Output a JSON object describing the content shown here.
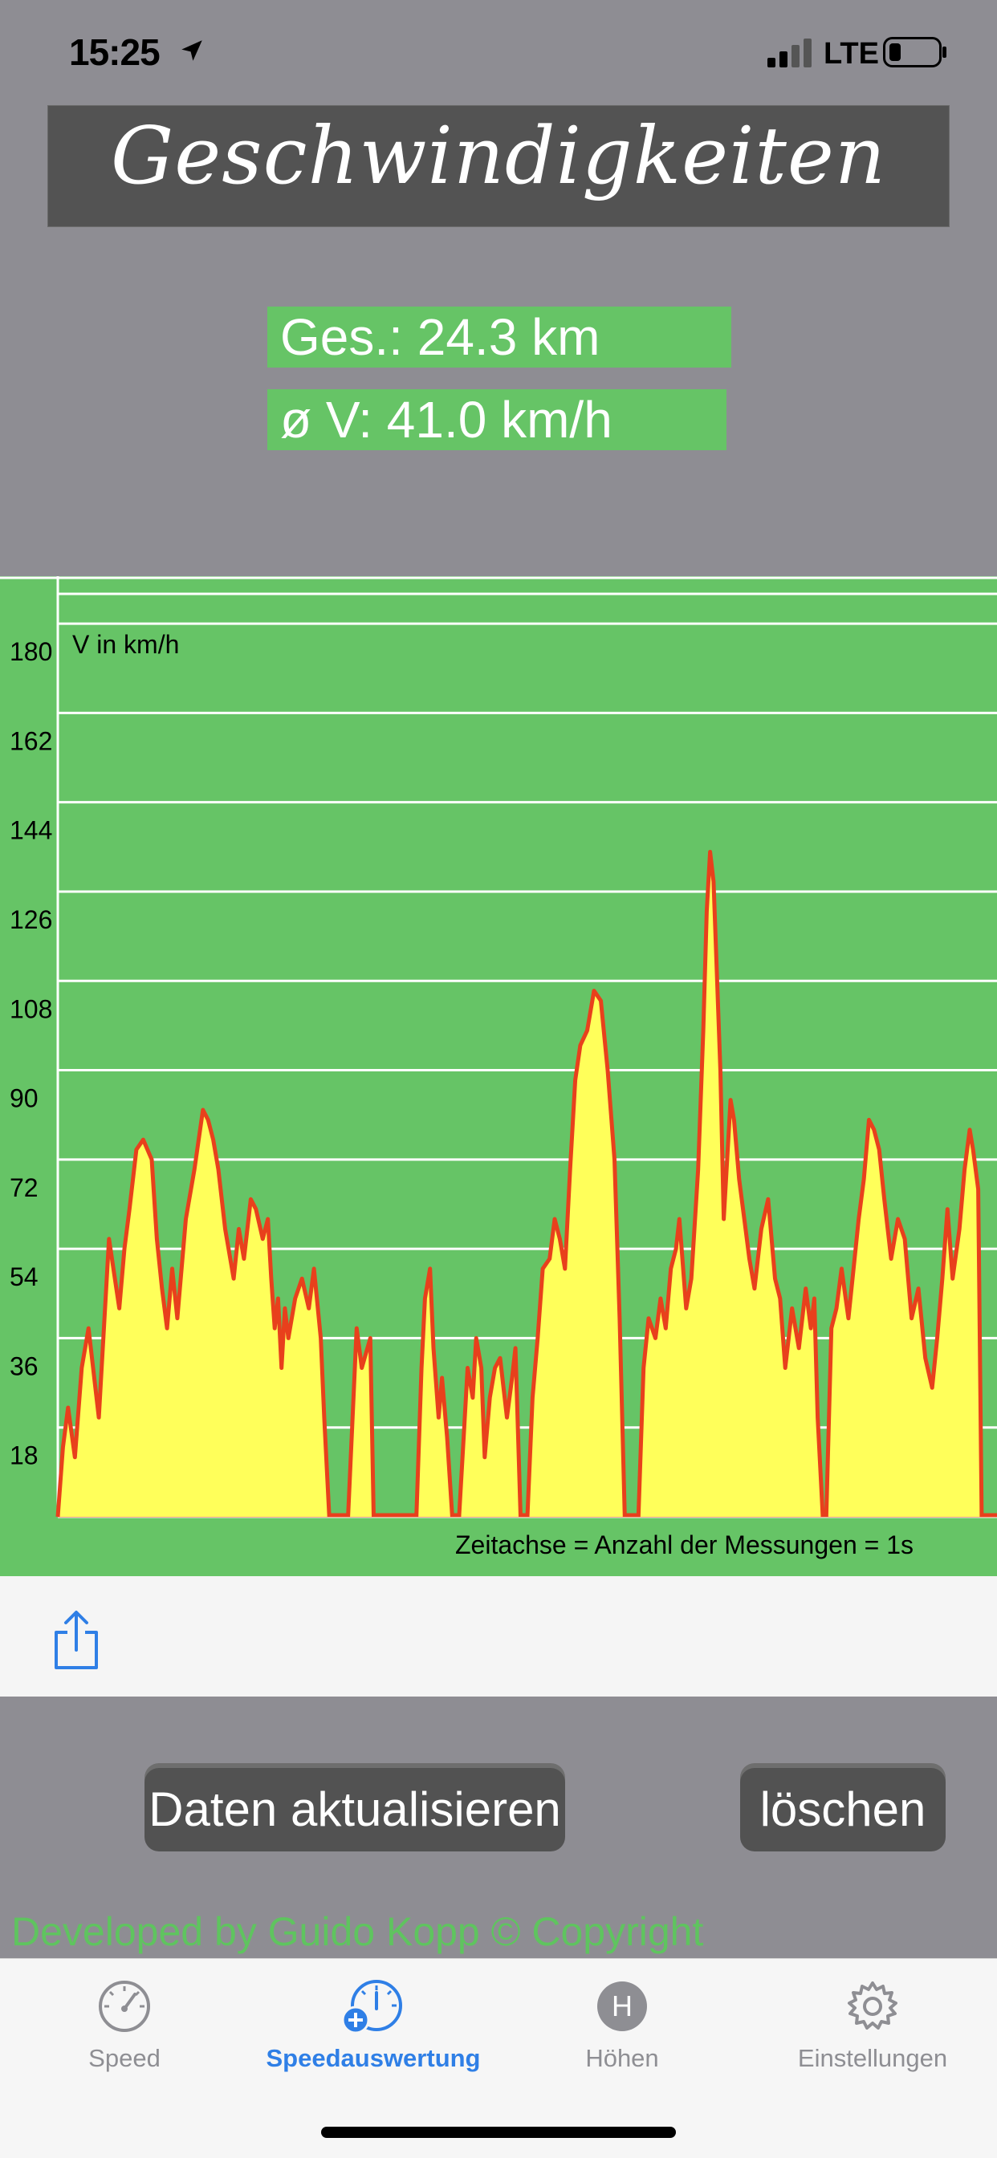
{
  "status_bar": {
    "time": "15:25",
    "network": "LTE",
    "location_icon": "location-arrow-icon",
    "signal_icon": "signal-bars-icon",
    "battery_icon": "battery-low-icon"
  },
  "header": {
    "title": "Geschwindigkeiten"
  },
  "stats": {
    "distance": "Ges.: 24.3 km",
    "avg_speed": "ø V: 41.0 km/h"
  },
  "chart_data": {
    "type": "area",
    "ylabel": "V in km/h",
    "xlabel": "Zeitachse = Anzahl der Messungen = 1s",
    "ylim": [
      0,
      186
    ],
    "yticks": [
      18,
      36,
      54,
      72,
      90,
      108,
      126,
      144,
      162,
      180
    ],
    "x_count": 1100,
    "fill_color": "#ffff5a",
    "line_color": "#e8401c",
    "background_color": "#66c466",
    "grid": true,
    "segments": [
      {
        "x": [
          0,
          6,
          12,
          20,
          28,
          36,
          48,
          60,
          72,
          78,
          84,
          92,
          100,
          110,
          116,
          122,
          128,
          134,
          140,
          150,
          160,
          170,
          176,
          182,
          188,
          196,
          206,
          212,
          218,
          226,
          232,
          240,
          246,
          250,
          254,
          258,
          262,
          266,
          270,
          278,
          286,
          294,
          300,
          308,
          312,
          318
        ],
        "y": [
          0,
          14,
          22,
          12,
          30,
          38,
          20,
          56,
          42,
          54,
          62,
          74,
          76,
          72,
          56,
          46,
          38,
          50,
          40,
          60,
          70,
          82,
          80,
          76,
          70,
          58,
          48,
          58,
          52,
          64,
          62,
          56,
          60,
          48,
          38,
          44,
          30,
          42,
          36,
          44,
          48,
          42,
          50,
          36,
          20,
          0
        ]
      },
      {
        "x": [
          340,
          350,
          356,
          366,
          370
        ],
        "y": [
          0,
          38,
          30,
          36,
          0
        ]
      },
      {
        "x": [
          420,
          426,
          430,
          436,
          440,
          446,
          450,
          456,
          462
        ],
        "y": [
          0,
          30,
          44,
          50,
          34,
          20,
          28,
          16,
          0
        ]
      },
      {
        "x": [
          470,
          476,
          480,
          486,
          490,
          496,
          500,
          506,
          512,
          518,
          526,
          532,
          536,
          542
        ],
        "y": [
          0,
          18,
          30,
          24,
          36,
          30,
          12,
          24,
          30,
          32,
          20,
          28,
          34,
          0
        ]
      },
      {
        "x": [
          550,
          556,
          562,
          568,
          576,
          582,
          588,
          594,
          600,
          606,
          612,
          620,
          628,
          636,
          644,
          652,
          658,
          664
        ],
        "y": [
          0,
          24,
          36,
          50,
          52,
          60,
          56,
          50,
          70,
          88,
          95,
          98,
          106,
          104,
          90,
          72,
          40,
          0
        ]
      },
      {
        "x": [
          680,
          686,
          692,
          700,
          706,
          712,
          718,
          724,
          728,
          736,
          742,
          750,
          756,
          760,
          764,
          768,
          776,
          780,
          788,
          792,
          798,
          804,
          810,
          816,
          824,
          832,
          840,
          846,
          852,
          860,
          868,
          876,
          882,
          886,
          890,
          896
        ],
        "y": [
          0,
          30,
          40,
          36,
          44,
          38,
          50,
          54,
          60,
          42,
          48,
          70,
          98,
          122,
          134,
          128,
          90,
          60,
          84,
          80,
          68,
          60,
          52,
          46,
          58,
          64,
          48,
          44,
          30,
          42,
          34,
          46,
          38,
          44,
          20,
          0
        ]
      },
      {
        "x": [
          900,
          906,
          912,
          918,
          926,
          932,
          938,
          944,
          950,
          956,
          962,
          968,
          976,
          984,
          992,
          1000,
          1008,
          1016,
          1024,
          1030,
          1036,
          1042,
          1048,
          1056,
          1062,
          1068,
          1072,
          1078,
          1082
        ],
        "y": [
          0,
          38,
          42,
          50,
          40,
          50,
          60,
          68,
          80,
          78,
          74,
          64,
          52,
          60,
          56,
          40,
          46,
          32,
          26,
          36,
          48,
          62,
          48,
          58,
          70,
          78,
          74,
          66,
          0
        ]
      }
    ]
  },
  "share": {
    "icon": "share-icon"
  },
  "buttons": {
    "refresh_label": "Daten aktualisieren",
    "delete_label": "löschen"
  },
  "footer": {
    "developer": "Developed by Guido Kopp © Copyright"
  },
  "tabs": [
    {
      "label": "Speed",
      "icon": "speedometer-icon",
      "active": false
    },
    {
      "label": "Speedauswertung",
      "icon": "speedometer-analysis-icon",
      "active": true
    },
    {
      "label": "Höhen",
      "icon": "altitude-h-icon",
      "active": false
    },
    {
      "label": "Einstellungen",
      "icon": "gear-icon",
      "active": false
    }
  ],
  "colors": {
    "accent": "#2f7fe6",
    "stat_green": "#66c466",
    "button_dark": "#525252"
  }
}
